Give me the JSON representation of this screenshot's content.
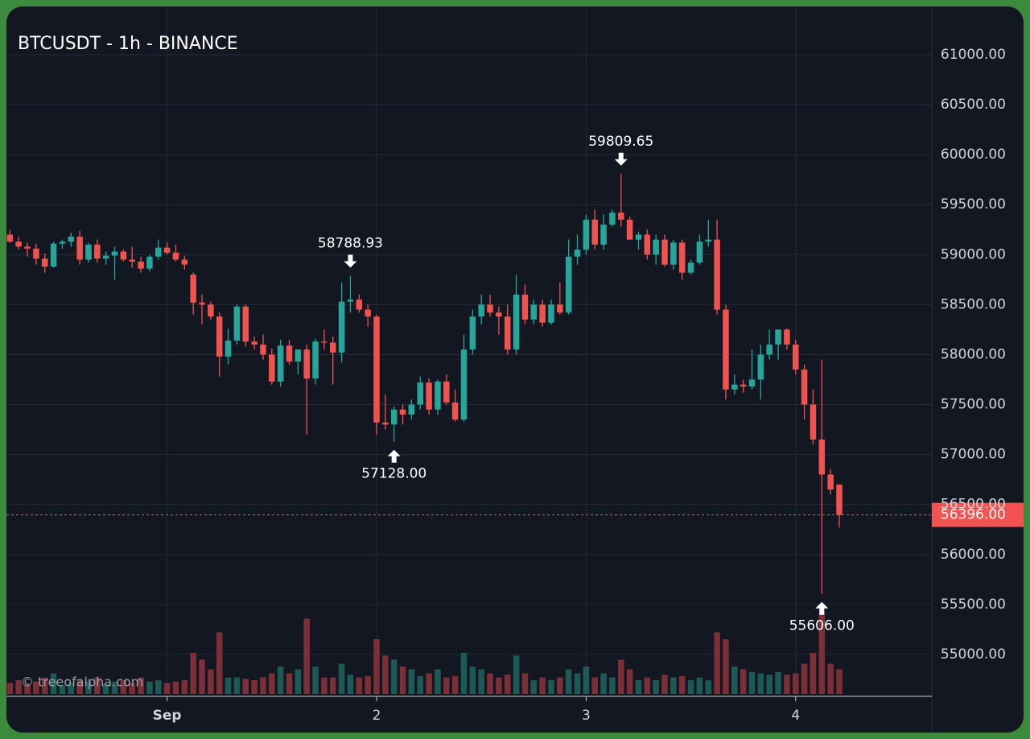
{
  "chart_data": {
    "type": "candlestick",
    "title": "BTCUSDT - 1h - BINANCE",
    "watermark": "© treeofalpha.com",
    "up_color": "#26a69a",
    "down_color": "#ef5350",
    "up_volume_color": "#1d5a55",
    "down_volume_color": "#7b2f37",
    "xlim": [
      -0.4,
      105.6
    ],
    "xticks": [
      {
        "value": 18,
        "label": "Sep"
      },
      {
        "value": 42,
        "label": "2"
      },
      {
        "value": 66,
        "label": "3"
      },
      {
        "value": 90,
        "label": "4"
      }
    ],
    "ylim": [
      54605,
      61483
    ],
    "yticks": [
      {
        "value": 55000,
        "label": "55000.00"
      },
      {
        "value": 55500,
        "label": "55500.00"
      },
      {
        "value": 56000,
        "label": "56000.00"
      },
      {
        "value": 56500,
        "label": "56500.00"
      },
      {
        "value": 57000,
        "label": "57000.00"
      },
      {
        "value": 57500,
        "label": "57500.00"
      },
      {
        "value": 58000,
        "label": "58000.00"
      },
      {
        "value": 58500,
        "label": "58500.00"
      },
      {
        "value": 59000,
        "label": "59000.00"
      },
      {
        "value": 59500,
        "label": "59500.00"
      },
      {
        "value": 60000,
        "label": "60000.00"
      },
      {
        "value": 60500,
        "label": "60500.00"
      },
      {
        "value": 61000,
        "label": "61000.00"
      }
    ],
    "volume_lim": [
      0,
      100
    ],
    "grid": true,
    "last_price": {
      "value": 56396,
      "label": "56396.00",
      "color": "#f05350"
    },
    "annotations": [
      {
        "index": 39,
        "value": 58788.93,
        "label": "58788.93",
        "position": "above"
      },
      {
        "index": 44,
        "value": 57128,
        "label": "57128.00",
        "position": "below"
      },
      {
        "index": 70,
        "value": 59809.65,
        "label": "59809.65",
        "position": "above"
      },
      {
        "index": 93,
        "value": 55606,
        "label": "55606.00",
        "position": "below"
      }
    ],
    "ohlcv": [
      [
        59200,
        59250,
        59120,
        59130,
        8
      ],
      [
        59130,
        59180,
        59050,
        59080,
        10
      ],
      [
        59080,
        59120,
        58980,
        59060,
        7
      ],
      [
        59060,
        59110,
        58900,
        58960,
        9
      ],
      [
        58960,
        59010,
        58820,
        58880,
        12
      ],
      [
        58880,
        59130,
        58870,
        59110,
        15
      ],
      [
        59110,
        59150,
        59060,
        59130,
        6
      ],
      [
        59130,
        59220,
        59080,
        59180,
        8
      ],
      [
        59180,
        59240,
        58900,
        58950,
        10
      ],
      [
        58950,
        59120,
        58920,
        59100,
        9
      ],
      [
        59100,
        59150,
        58920,
        58960,
        12
      ],
      [
        58960,
        59030,
        58900,
        58990,
        7
      ],
      [
        58990,
        59080,
        58750,
        59030,
        9
      ],
      [
        59030,
        59050,
        58930,
        58950,
        10
      ],
      [
        58950,
        59080,
        58870,
        58930,
        8
      ],
      [
        58930,
        58980,
        58820,
        58860,
        12
      ],
      [
        58860,
        59000,
        58830,
        58980,
        9
      ],
      [
        58980,
        59150,
        58950,
        59070,
        10
      ],
      [
        59070,
        59120,
        59000,
        59020,
        8
      ],
      [
        59020,
        59100,
        58930,
        58950,
        9
      ],
      [
        58950,
        58990,
        58850,
        58900,
        10
      ],
      [
        58800,
        58820,
        58400,
        58520,
        30
      ],
      [
        58520,
        58600,
        58300,
        58500,
        25
      ],
      [
        58500,
        58530,
        58350,
        58380,
        18
      ],
      [
        58380,
        58420,
        57780,
        57980,
        45
      ],
      [
        57980,
        58260,
        57900,
        58140,
        12
      ],
      [
        58140,
        58500,
        58100,
        58480,
        12
      ],
      [
        58480,
        58500,
        58080,
        58130,
        11
      ],
      [
        58130,
        58180,
        58050,
        58100,
        10
      ],
      [
        58100,
        58200,
        57950,
        58000,
        12
      ],
      [
        58000,
        58060,
        57700,
        57730,
        15
      ],
      [
        57730,
        58150,
        57680,
        58090,
        20
      ],
      [
        58090,
        58150,
        57900,
        57930,
        15
      ],
      [
        57930,
        58000,
        57800,
        58050,
        18
      ],
      [
        58050,
        58100,
        57200,
        57760,
        55
      ],
      [
        57760,
        58160,
        57700,
        58130,
        20
      ],
      [
        58130,
        58250,
        58050,
        58120,
        12
      ],
      [
        58120,
        58180,
        57700,
        58020,
        12
      ],
      [
        58020,
        58720,
        57920,
        58530,
        22
      ],
      [
        58530,
        58788.93,
        58420,
        58550,
        14
      ],
      [
        58550,
        58600,
        58420,
        58450,
        12
      ],
      [
        58450,
        58500,
        58280,
        58380,
        13
      ],
      [
        58380,
        58400,
        57200,
        57320,
        40
      ],
      [
        57320,
        57600,
        57250,
        57300,
        28
      ],
      [
        57300,
        57480,
        57128,
        57450,
        25
      ],
      [
        57450,
        57500,
        57300,
        57400,
        20
      ],
      [
        57400,
        57550,
        57350,
        57500,
        18
      ],
      [
        57500,
        57780,
        57450,
        57720,
        13
      ],
      [
        57720,
        57760,
        57400,
        57450,
        15
      ],
      [
        57450,
        57750,
        57400,
        57730,
        18
      ],
      [
        57730,
        57800,
        57500,
        57520,
        12
      ],
      [
        57520,
        57650,
        57330,
        57350,
        13
      ],
      [
        57350,
        58200,
        57330,
        58050,
        30
      ],
      [
        58050,
        58450,
        58000,
        58380,
        20
      ],
      [
        58380,
        58600,
        58300,
        58500,
        18
      ],
      [
        58500,
        58600,
        58380,
        58420,
        15
      ],
      [
        58420,
        58480,
        58200,
        58380,
        12
      ],
      [
        58380,
        58500,
        58000,
        58050,
        14
      ],
      [
        58050,
        58800,
        58000,
        58600,
        28
      ],
      [
        58600,
        58700,
        58300,
        58350,
        15
      ],
      [
        58350,
        58550,
        58300,
        58500,
        10
      ],
      [
        58500,
        58550,
        58280,
        58320,
        12
      ],
      [
        58320,
        58550,
        58300,
        58500,
        10
      ],
      [
        58500,
        58720,
        58400,
        58420,
        12
      ],
      [
        58420,
        59150,
        58400,
        58980,
        18
      ],
      [
        58980,
        59200,
        58900,
        59050,
        15
      ],
      [
        59050,
        59400,
        59000,
        59350,
        20
      ],
      [
        59350,
        59450,
        59050,
        59100,
        12
      ],
      [
        59100,
        59400,
        59050,
        59300,
        15
      ],
      [
        59300,
        59450,
        59280,
        59420,
        12
      ],
      [
        59420,
        59809.65,
        59280,
        59350,
        25
      ],
      [
        59350,
        59380,
        59150,
        59150,
        18
      ],
      [
        59150,
        59230,
        59050,
        59200,
        10
      ],
      [
        59200,
        59250,
        58950,
        59000,
        12
      ],
      [
        59000,
        59200,
        58900,
        59150,
        10
      ],
      [
        59150,
        59200,
        58880,
        58900,
        14
      ],
      [
        58900,
        59150,
        58850,
        59120,
        12
      ],
      [
        59120,
        59150,
        58750,
        58820,
        13
      ],
      [
        58820,
        58950,
        58800,
        58920,
        10
      ],
      [
        58920,
        59200,
        58900,
        59130,
        12
      ],
      [
        59130,
        59350,
        59080,
        59150,
        10
      ],
      [
        59150,
        59350,
        58400,
        58450,
        45
      ],
      [
        58450,
        58500,
        57550,
        57650,
        40
      ],
      [
        57650,
        57800,
        57600,
        57700,
        20
      ],
      [
        57700,
        57750,
        57620,
        57680,
        18
      ],
      [
        57680,
        58050,
        57650,
        57750,
        16
      ],
      [
        57750,
        58100,
        57550,
        58000,
        15
      ],
      [
        58000,
        58250,
        57950,
        58100,
        14
      ],
      [
        58100,
        58250,
        57950,
        58250,
        16
      ],
      [
        58250,
        58260,
        58050,
        58100,
        14
      ],
      [
        58100,
        58150,
        57800,
        57850,
        15
      ],
      [
        57850,
        57900,
        57350,
        57500,
        22
      ],
      [
        57500,
        57650,
        57100,
        57150,
        30
      ],
      [
        57150,
        57950,
        55606,
        56800,
        60
      ],
      [
        56800,
        56850,
        56600,
        56650,
        22
      ],
      [
        56700,
        56700,
        56270,
        56396,
        18
      ]
    ]
  }
}
